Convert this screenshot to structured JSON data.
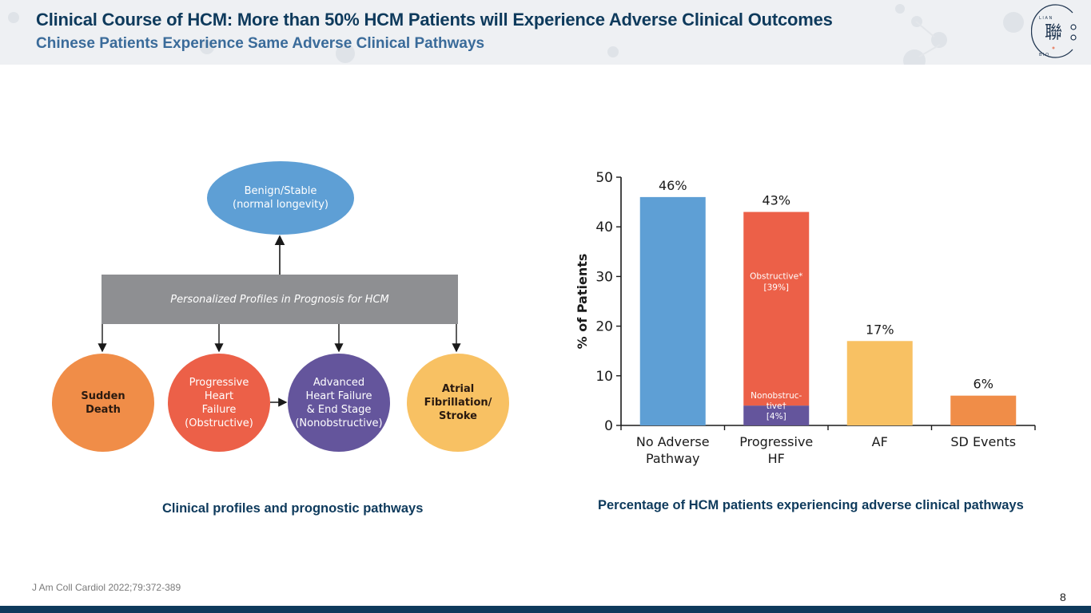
{
  "header": {
    "title": "Clinical Course of HCM: More than 50% HCM Patients will Experience Adverse Clinical Outcomes",
    "subtitle": "Chinese Patients Experience Same Adverse Clinical Pathways",
    "logo": {
      "icon": "lianbio-logo",
      "glyph": "聯",
      "ring_text": "LIANBIO"
    }
  },
  "diagram": {
    "top_node": [
      "Benign/Stable",
      "(normal longevity)"
    ],
    "profile_box": "Personalized Profiles in Prognosis for HCM",
    "outcomes": [
      {
        "id": "sudden-death",
        "lines": [
          "Sudden",
          "Death"
        ],
        "color": "#f08d48"
      },
      {
        "id": "progressive-hf",
        "lines": [
          "Progressive",
          "Heart",
          "Failure",
          "(Obstructive)"
        ],
        "color": "#ec6048"
      },
      {
        "id": "advanced-hf",
        "lines": [
          "Advanced",
          "Heart Failure",
          "& End Stage",
          "(Nonobstructive)"
        ],
        "color": "#64559c"
      },
      {
        "id": "af-stroke",
        "lines": [
          "Atrial",
          "Fibrillation/",
          "Stroke"
        ],
        "color": "#f8c163"
      }
    ],
    "caption": "Clinical profiles and prognostic pathways"
  },
  "chart_data": {
    "type": "bar",
    "title": "",
    "xlabel": "",
    "ylabel": "% of Patients",
    "ylim": [
      0,
      50
    ],
    "yticks": [
      0,
      10,
      20,
      30,
      40,
      50
    ],
    "grid": false,
    "categories": [
      [
        "No Adverse",
        "Pathway"
      ],
      [
        "Progressive",
        "HF"
      ],
      [
        "AF"
      ],
      [
        "SD Events"
      ]
    ],
    "values": [
      46,
      43,
      17,
      6
    ],
    "value_labels": [
      "46%",
      "43%",
      "17%",
      "6%"
    ],
    "colors": [
      "#5e9fd5",
      "#ec6048",
      "#f8c163",
      "#f08d48"
    ],
    "stacked_breakdown": {
      "category_index": 1,
      "segments": [
        {
          "name": "Nonobstructive",
          "value": 4,
          "label_lines": [
            "Nonobstruc-",
            "tive†",
            "[4%]"
          ],
          "color": "#64559c"
        },
        {
          "name": "Obstructive",
          "value": 39,
          "label_lines": [
            "Obstructive*",
            "[39%]"
          ],
          "color": "#ec6048"
        }
      ]
    },
    "caption": "Percentage of HCM patients experiencing adverse clinical pathways"
  },
  "footer": {
    "citation": "J Am Coll Cardiol 2022;79:372-389",
    "page_number": "8",
    "bar_color": "#0e3a5c"
  }
}
